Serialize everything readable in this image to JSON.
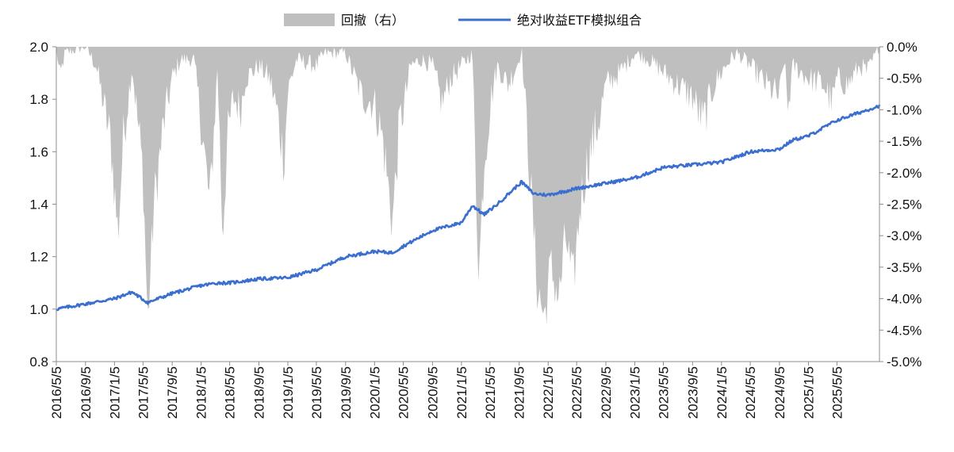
{
  "chart_data": {
    "type": "line+area",
    "legend": [
      "回撤（右）",
      "绝对收益ETF模拟组合"
    ],
    "legend_position": "top-center",
    "colors": {
      "drawdown": "#bfbfbf",
      "portfolio": "#3a6fd0"
    },
    "y_left": {
      "min": 0.8,
      "max": 2.0,
      "step": 0.2,
      "ticks": [
        "0.8",
        "1.0",
        "1.2",
        "1.4",
        "1.6",
        "1.8",
        "2.0"
      ]
    },
    "y_right": {
      "min": -5.0,
      "max": 0.0,
      "step": 0.5,
      "ticks": [
        "-5.0%",
        "-4.5%",
        "-4.0%",
        "-3.5%",
        "-3.0%",
        "-2.5%",
        "-2.0%",
        "-1.5%",
        "-1.0%",
        "-0.5%",
        "0.0%"
      ]
    },
    "x_ticks": [
      "2016/5/5",
      "2016/9/5",
      "2017/1/5",
      "2017/5/5",
      "2017/9/5",
      "2018/1/5",
      "2018/5/5",
      "2018/9/5",
      "2019/1/5",
      "2019/5/5",
      "2019/9/5",
      "2020/1/5",
      "2020/5/5",
      "2020/9/5",
      "2021/1/5",
      "2021/5/5",
      "2021/9/5",
      "2022/1/5",
      "2022/5/5",
      "2022/9/5",
      "2023/1/5",
      "2023/5/5",
      "2023/9/5",
      "2024/1/5",
      "2024/5/5",
      "2024/9/5",
      "2025/1/5",
      "2025/5/5"
    ],
    "x_range": [
      "2016/5/5",
      "2025/10/31"
    ],
    "series": [
      {
        "name": "绝对收益ETF模拟组合",
        "axis": "left",
        "points": [
          [
            "2016/5/5",
            1.0
          ],
          [
            "2016/9/5",
            1.02
          ],
          [
            "2017/1/5",
            1.04
          ],
          [
            "2017/3/20",
            1.065
          ],
          [
            "2017/5/25",
            1.025
          ],
          [
            "2017/9/5",
            1.06
          ],
          [
            "2018/1/5",
            1.09
          ],
          [
            "2018/3/15",
            1.1
          ],
          [
            "2018/5/5",
            1.1
          ],
          [
            "2018/9/5",
            1.115
          ],
          [
            "2019/1/5",
            1.12
          ],
          [
            "2019/5/5",
            1.15
          ],
          [
            "2019/9/5",
            1.2
          ],
          [
            "2020/1/5",
            1.22
          ],
          [
            "2020/3/20",
            1.215
          ],
          [
            "2020/5/5",
            1.24
          ],
          [
            "2020/9/5",
            1.3
          ],
          [
            "2021/1/5",
            1.33
          ],
          [
            "2021/2/20",
            1.395
          ],
          [
            "2021/4/10",
            1.36
          ],
          [
            "2021/6/5",
            1.4
          ],
          [
            "2021/9/15",
            1.485
          ],
          [
            "2021/11/5",
            1.44
          ],
          [
            "2022/1/5",
            1.435
          ],
          [
            "2022/5/5",
            1.46
          ],
          [
            "2022/9/5",
            1.48
          ],
          [
            "2023/1/5",
            1.5
          ],
          [
            "2023/5/5",
            1.54
          ],
          [
            "2023/9/5",
            1.55
          ],
          [
            "2024/1/5",
            1.56
          ],
          [
            "2024/5/5",
            1.6
          ],
          [
            "2024/9/5",
            1.61
          ],
          [
            "2024/11/1",
            1.645
          ],
          [
            "2025/1/5",
            1.66
          ],
          [
            "2025/5/5",
            1.72
          ],
          [
            "2025/10/31",
            1.775
          ]
        ]
      },
      {
        "name": "回撤（右）",
        "axis": "right",
        "unit": "%",
        "points": [
          [
            "2016/5/5",
            0.0
          ],
          [
            "2016/5/20",
            -0.5
          ],
          [
            "2016/6/10",
            -0.1
          ],
          [
            "2016/9/5",
            0.0
          ],
          [
            "2016/10/20",
            -0.3
          ],
          [
            "2016/12/20",
            -1.5
          ],
          [
            "2017/1/20",
            -3.0
          ],
          [
            "2017/2/10",
            -1.5
          ],
          [
            "2017/3/20",
            -0.3
          ],
          [
            "2017/5/5",
            -2.0
          ],
          [
            "2017/5/25",
            -4.4
          ],
          [
            "2017/6/20",
            -2.5
          ],
          [
            "2017/8/1",
            -1.2
          ],
          [
            "2017/9/5",
            -0.5
          ],
          [
            "2017/10/10",
            -0.2
          ],
          [
            "2017/12/5",
            -0.2
          ],
          [
            "2018/1/5",
            -1.2
          ],
          [
            "2018/2/10",
            -2.5
          ],
          [
            "2018/3/15",
            -0.3
          ],
          [
            "2018/4/5",
            -3.0
          ],
          [
            "2018/4/25",
            -1.5
          ],
          [
            "2018/5/20",
            -0.8
          ],
          [
            "2018/6/20",
            -1.0
          ],
          [
            "2018/7/10",
            -0.5
          ],
          [
            "2018/9/5",
            -0.3
          ],
          [
            "2018/10/20",
            -0.5
          ],
          [
            "2018/11/20",
            -1.0
          ],
          [
            "2018/12/20",
            -1.8
          ],
          [
            "2019/1/5",
            -0.7
          ],
          [
            "2019/2/10",
            -0.2
          ],
          [
            "2019/5/5",
            -0.3
          ],
          [
            "2019/6/10",
            -0.1
          ],
          [
            "2019/9/5",
            -0.1
          ],
          [
            "2019/11/15",
            -0.8
          ],
          [
            "2020/1/5",
            -0.9
          ],
          [
            "2020/2/10",
            -1.5
          ],
          [
            "2020/3/20",
            -2.8
          ],
          [
            "2020/4/20",
            -1.2
          ],
          [
            "2020/5/5",
            -1.0
          ],
          [
            "2020/6/5",
            -0.3
          ],
          [
            "2020/7/20",
            -0.2
          ],
          [
            "2020/9/5",
            -0.3
          ],
          [
            "2020/10/15",
            -0.9
          ],
          [
            "2020/11/20",
            -0.5
          ],
          [
            "2021/1/5",
            -0.3
          ],
          [
            "2021/2/20",
            -0.1
          ],
          [
            "2021/3/10",
            -2.6
          ],
          [
            "2021/3/20",
            -3.6
          ],
          [
            "2021/4/10",
            -1.8
          ],
          [
            "2021/5/10",
            -0.8
          ],
          [
            "2021/6/5",
            -0.3
          ],
          [
            "2021/7/20",
            -0.6
          ],
          [
            "2021/9/5",
            -0.2
          ],
          [
            "2021/9/15",
            0.0
          ],
          [
            "2021/11/20",
            -3.8
          ],
          [
            "2021/12/20",
            -4.3
          ],
          [
            "2022/1/15",
            -3.5
          ],
          [
            "2022/2/20",
            -4.0
          ],
          [
            "2022/3/20",
            -3.0
          ],
          [
            "2022/4/20",
            -3.8
          ],
          [
            "2022/5/20",
            -2.5
          ],
          [
            "2022/6/20",
            -1.8
          ],
          [
            "2022/8/5",
            -1.2
          ],
          [
            "2022/9/5",
            -0.6
          ],
          [
            "2022/11/5",
            -0.4
          ],
          [
            "2023/1/5",
            -0.1
          ],
          [
            "2023/3/5",
            -0.2
          ],
          [
            "2023/5/5",
            -0.4
          ],
          [
            "2023/7/5",
            -0.6
          ],
          [
            "2023/9/5",
            -0.8
          ],
          [
            "2023/10/20",
            -1.2
          ],
          [
            "2023/12/5",
            -0.6
          ],
          [
            "2024/1/5",
            -0.4
          ],
          [
            "2024/2/10",
            -0.2
          ],
          [
            "2024/3/10",
            -0.1
          ],
          [
            "2024/5/5",
            -0.3
          ],
          [
            "2024/7/10",
            -0.6
          ],
          [
            "2024/9/5",
            -0.8
          ],
          [
            "2024/9/25",
            -0.2
          ],
          [
            "2024/10/10",
            -1.0
          ],
          [
            "2024/11/1",
            -0.3
          ],
          [
            "2025/1/5",
            -0.5
          ],
          [
            "2025/3/10",
            -0.6
          ],
          [
            "2025/4/15",
            -0.9
          ],
          [
            "2025/5/5",
            -0.5
          ],
          [
            "2025/6/20",
            -0.6
          ],
          [
            "2025/8/10",
            -0.3
          ],
          [
            "2025/9/10",
            -0.4
          ],
          [
            "2025/10/31",
            0.0
          ]
        ]
      }
    ]
  }
}
